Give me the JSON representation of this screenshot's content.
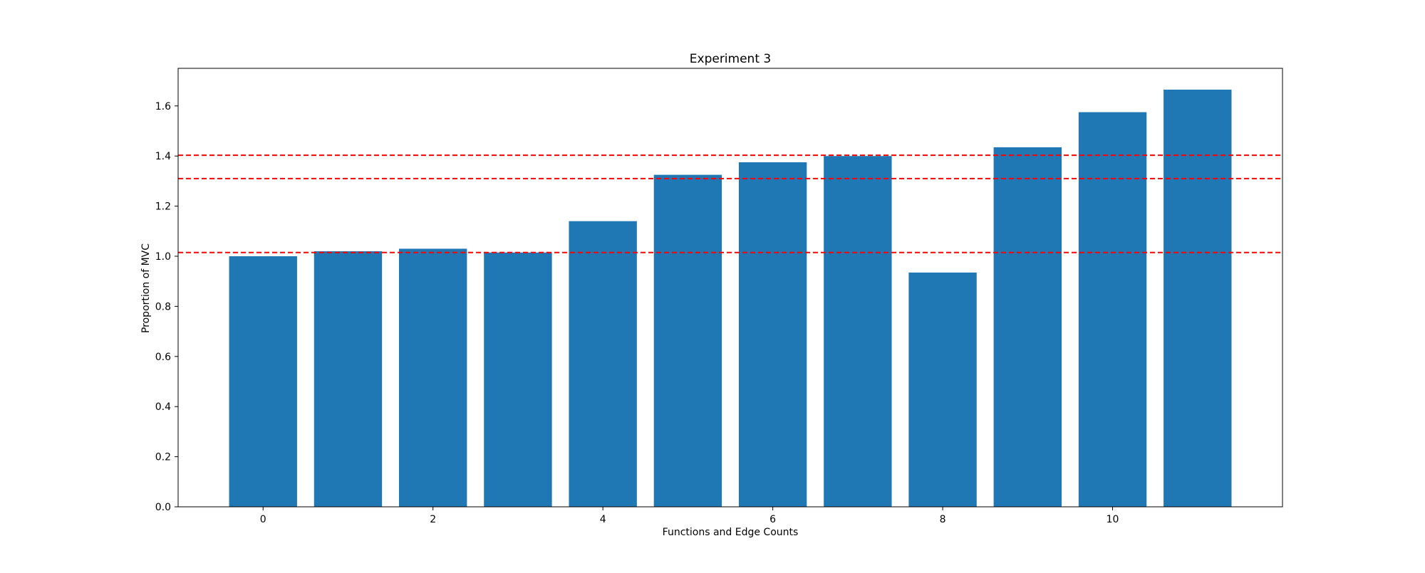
{
  "chart_data": {
    "type": "bar",
    "title": "Experiment 3",
    "xlabel": "Functions and Edge Counts",
    "ylabel": "Proportion of MVC",
    "categories": [
      0,
      1,
      2,
      3,
      4,
      5,
      6,
      7,
      8,
      9,
      10,
      11
    ],
    "values": [
      1.0,
      1.02,
      1.03,
      1.015,
      1.14,
      1.325,
      1.375,
      1.4,
      0.935,
      1.435,
      1.575,
      1.665
    ],
    "bar_color": "#1f77b4",
    "xticks": [
      0,
      2,
      4,
      6,
      8,
      10
    ],
    "yticks": [
      0.0,
      0.2,
      0.4,
      0.6,
      0.8,
      1.0,
      1.2,
      1.4,
      1.6
    ],
    "xlim": [
      -1,
      12
    ],
    "ylim": [
      0,
      1.75
    ],
    "reference_lines": [
      {
        "value": 1.015,
        "color": "#ff0000",
        "style": "dashed"
      },
      {
        "value": 1.31,
        "color": "#ff0000",
        "style": "dashed"
      },
      {
        "value": 1.403,
        "color": "#ff0000",
        "style": "dashed"
      }
    ],
    "grid": false,
    "legend": "none"
  }
}
